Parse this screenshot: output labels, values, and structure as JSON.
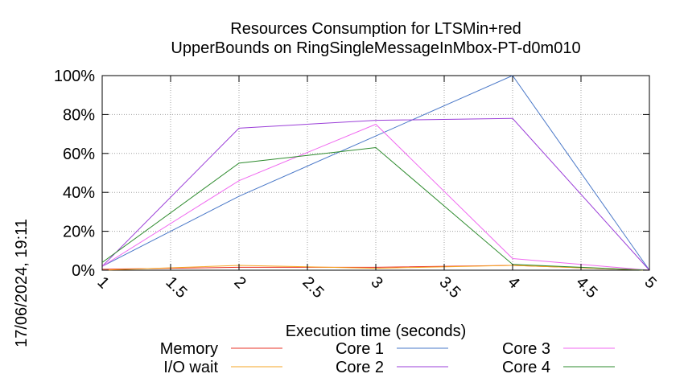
{
  "timestamp": "17/06/2024, 19:11",
  "chart_data": {
    "type": "line",
    "title": "Resources Consumption for LTSMin+red",
    "subtitle": "UpperBounds on RingSingleMessageInMbox-PT-d0m010",
    "xlabel": "Execution time (seconds)",
    "ylabel": "",
    "xlim": [
      1,
      5
    ],
    "ylim": [
      0,
      100
    ],
    "xticks": [
      1,
      1.5,
      2,
      2.5,
      3,
      3.5,
      4,
      4.5,
      5
    ],
    "xtick_labels": [
      "1",
      "1.5",
      "2",
      "2.5",
      "3",
      "3.5",
      "4",
      "4.5",
      "5"
    ],
    "yticks": [
      0,
      20,
      40,
      60,
      80,
      100
    ],
    "ytick_labels": [
      "0%",
      "20%",
      "40%",
      "60%",
      "80%",
      "100%"
    ],
    "grid": true,
    "legend_position": "bottom",
    "x": [
      1,
      2,
      3,
      4,
      5
    ],
    "series": [
      {
        "name": "Memory",
        "color": "#e8352a",
        "values": [
          0.5,
          1.5,
          1.5,
          2.5,
          0
        ]
      },
      {
        "name": "I/O wait",
        "color": "#f5a623",
        "values": [
          0,
          2.5,
          1,
          2.5,
          0
        ]
      },
      {
        "name": "Core 1",
        "color": "#4a78c8",
        "values": [
          2,
          38,
          69,
          100,
          0
        ]
      },
      {
        "name": "Core 2",
        "color": "#9b3fd8",
        "values": [
          2,
          73,
          77,
          78,
          0
        ]
      },
      {
        "name": "Core 3",
        "color": "#f06af0",
        "values": [
          2,
          46,
          75,
          6,
          0
        ]
      },
      {
        "name": "Core 4",
        "color": "#2e8b2e",
        "values": [
          4,
          55,
          63,
          3,
          0
        ]
      }
    ]
  }
}
